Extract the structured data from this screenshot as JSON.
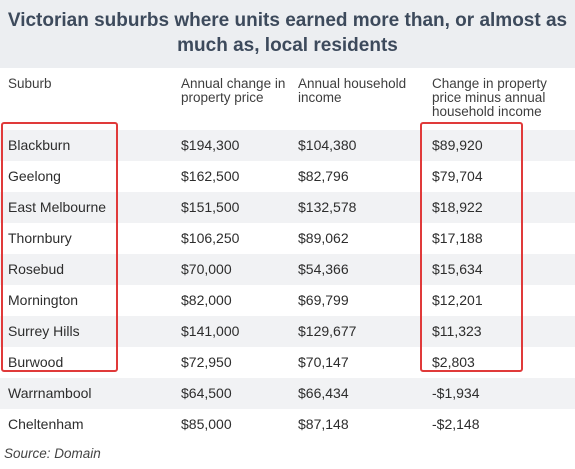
{
  "title": "Victorian suburbs where units earned more than, or almost as much as, local residents",
  "columns": {
    "suburb": "Suburb",
    "price_change": "Annual change in property price",
    "income": "Annual household income",
    "difference": "Change in property price minus annual household income"
  },
  "rows": [
    {
      "suburb": "Blackburn",
      "price_change": "$194,300",
      "income": "$104,380",
      "difference": "$89,920"
    },
    {
      "suburb": "Geelong",
      "price_change": "$162,500",
      "income": "$82,796",
      "difference": "$79,704"
    },
    {
      "suburb": "East Melbourne",
      "price_change": "$151,500",
      "income": "$132,578",
      "difference": "$18,922"
    },
    {
      "suburb": "Thornbury",
      "price_change": "$106,250",
      "income": "$89,062",
      "difference": "$17,188"
    },
    {
      "suburb": "Rosebud",
      "price_change": "$70,000",
      "income": "$54,366",
      "difference": "$15,634"
    },
    {
      "suburb": "Mornington",
      "price_change": "$82,000",
      "income": "$69,799",
      "difference": "$12,201"
    },
    {
      "suburb": "Surrey Hills",
      "price_change": "$141,000",
      "income": "$129,677",
      "difference": "$11,323"
    },
    {
      "suburb": "Burwood",
      "price_change": "$72,950",
      "income": "$70,147",
      "difference": "$2,803"
    },
    {
      "suburb": "Warrnambool",
      "price_change": "$64,500",
      "income": "$66,434",
      "difference": "-$1,934"
    },
    {
      "suburb": "Cheltenham",
      "price_change": "$85,000",
      "income": "$87,148",
      "difference": "-$2,148"
    }
  ],
  "source": "Source: Domain",
  "colors": {
    "title_text": "#3d4a5c",
    "title_background": "#eceef1",
    "row_shade": "#f1f2f4",
    "highlight_box": "#e03a3a"
  }
}
